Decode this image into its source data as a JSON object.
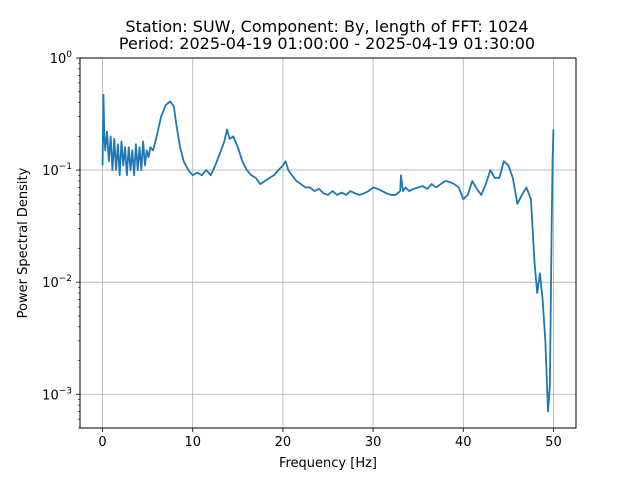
{
  "chart_data": {
    "type": "line",
    "title": [
      "Station: SUW, Component: By, length of FFT: 1024",
      "Period: 2025-04-19 01:00:00 - 2025-04-19 01:30:00"
    ],
    "xlabel": "Frequency [Hz]",
    "ylabel": "Power Spectral Density",
    "xlim": [
      -2.5,
      52.5
    ],
    "ylim": [
      0.0005,
      1
    ],
    "yscale": "log",
    "grid": true,
    "line_color": "#1f77b4",
    "x_ticks": [
      0,
      10,
      20,
      30,
      40,
      50
    ],
    "x_tick_labels": [
      "0",
      "10",
      "20",
      "30",
      "40",
      "50"
    ],
    "y_ticks": [
      0.001,
      0.01,
      0.1,
      1
    ],
    "y_tick_labels": [
      {
        "base": "10",
        "exp": "−3"
      },
      {
        "base": "10",
        "exp": "−2"
      },
      {
        "base": "10",
        "exp": "−1"
      },
      {
        "base": "10",
        "exp": "0"
      }
    ],
    "series": [
      {
        "x": [
          0,
          0.1,
          0.2,
          0.3,
          0.5,
          0.7,
          0.9,
          1.1,
          1.3,
          1.5,
          1.7,
          1.9,
          2.1,
          2.3,
          2.5,
          2.7,
          2.9,
          3.1,
          3.3,
          3.5,
          3.7,
          3.9,
          4.1,
          4.3,
          4.5,
          4.7,
          4.9,
          5.1,
          5.3,
          5.6,
          6.0,
          6.5,
          7.0,
          7.5,
          7.9,
          8.2,
          8.6,
          9.0,
          9.5,
          10.0,
          10.5,
          11.0,
          11.5,
          12.0,
          12.5,
          13.0,
          13.5,
          13.8,
          14.1,
          14.5,
          15.0,
          15.5,
          16.0,
          16.5,
          17.0,
          17.5,
          18.0,
          18.5,
          19.0,
          19.5,
          20.0,
          20.3,
          20.6,
          21.0,
          21.5,
          22.0,
          22.5,
          23.0,
          23.5,
          24.0,
          24.5,
          25.0,
          25.5,
          26.0,
          26.5,
          27.0,
          27.5,
          28.0,
          28.5,
          29.0,
          29.5,
          30.0,
          30.5,
          31.0,
          31.5,
          32.0,
          32.5,
          33.0,
          33.1,
          33.3,
          33.6,
          34.0,
          34.5,
          35.0,
          35.5,
          36.0,
          36.5,
          37.0,
          37.5,
          38.0,
          38.5,
          39.0,
          39.5,
          40.0,
          40.5,
          41.0,
          41.5,
          42.0,
          42.5,
          43.0,
          43.5,
          44.0,
          44.5,
          45.0,
          45.5,
          46.0,
          46.5,
          47.0,
          47.5,
          47.9,
          48.2,
          48.5,
          48.8,
          49.1,
          49.4,
          49.6,
          49.8,
          49.9,
          50.0
        ],
        "values": [
          0.11,
          0.47,
          0.2,
          0.15,
          0.22,
          0.12,
          0.2,
          0.1,
          0.19,
          0.1,
          0.17,
          0.09,
          0.18,
          0.11,
          0.16,
          0.09,
          0.16,
          0.1,
          0.15,
          0.09,
          0.17,
          0.1,
          0.16,
          0.1,
          0.18,
          0.11,
          0.15,
          0.13,
          0.16,
          0.15,
          0.2,
          0.3,
          0.38,
          0.41,
          0.37,
          0.25,
          0.16,
          0.12,
          0.1,
          0.09,
          0.095,
          0.09,
          0.1,
          0.09,
          0.11,
          0.14,
          0.18,
          0.23,
          0.19,
          0.2,
          0.16,
          0.12,
          0.1,
          0.09,
          0.085,
          0.075,
          0.08,
          0.085,
          0.09,
          0.1,
          0.11,
          0.12,
          0.1,
          0.09,
          0.08,
          0.075,
          0.07,
          0.07,
          0.065,
          0.068,
          0.062,
          0.06,
          0.065,
          0.06,
          0.063,
          0.06,
          0.065,
          0.062,
          0.06,
          0.062,
          0.065,
          0.07,
          0.068,
          0.065,
          0.062,
          0.06,
          0.06,
          0.065,
          0.09,
          0.065,
          0.07,
          0.065,
          0.068,
          0.07,
          0.072,
          0.068,
          0.075,
          0.07,
          0.075,
          0.08,
          0.078,
          0.075,
          0.07,
          0.055,
          0.06,
          0.08,
          0.068,
          0.06,
          0.075,
          0.1,
          0.085,
          0.085,
          0.12,
          0.11,
          0.085,
          0.05,
          0.06,
          0.07,
          0.055,
          0.015,
          0.008,
          0.012,
          0.007,
          0.003,
          0.0007,
          0.0012,
          0.03,
          0.12,
          0.23
        ]
      }
    ]
  }
}
